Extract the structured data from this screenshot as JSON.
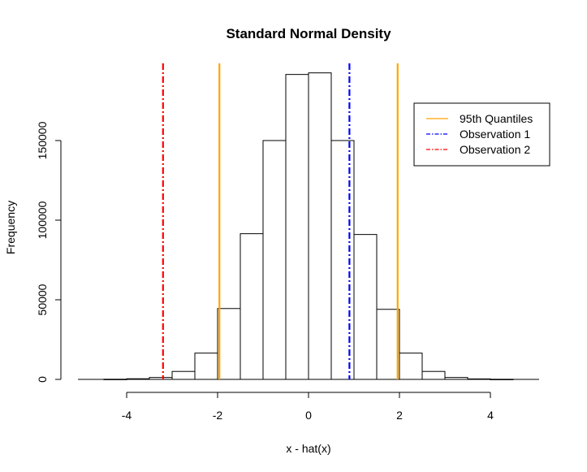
{
  "chart_data": {
    "type": "bar",
    "title": "Standard Normal Density",
    "xlabel": "x - hat(x)",
    "ylabel": "Frequency",
    "xlim": [
      -5,
      5
    ],
    "ylim": [
      0,
      200000
    ],
    "x_ticks": [
      -4,
      -2,
      0,
      2,
      4
    ],
    "y_ticks": [
      0,
      50000,
      100000,
      150000
    ],
    "grid": false,
    "bins": [
      {
        "x0": -4.5,
        "x1": -4.0,
        "count": 100
      },
      {
        "x0": -4.0,
        "x1": -3.5,
        "count": 400
      },
      {
        "x0": -3.5,
        "x1": -3.0,
        "count": 1200
      },
      {
        "x0": -3.0,
        "x1": -2.5,
        "count": 5000
      },
      {
        "x0": -2.5,
        "x1": -2.0,
        "count": 16500
      },
      {
        "x0": -2.0,
        "x1": -1.5,
        "count": 44500
      },
      {
        "x0": -1.5,
        "x1": -1.0,
        "count": 91500
      },
      {
        "x0": -1.0,
        "x1": -0.5,
        "count": 150000
      },
      {
        "x0": -0.5,
        "x1": 0.0,
        "count": 191500
      },
      {
        "x0": 0.0,
        "x1": 0.5,
        "count": 192500
      },
      {
        "x0": 0.5,
        "x1": 1.0,
        "count": 150000
      },
      {
        "x0": 1.0,
        "x1": 1.5,
        "count": 91000
      },
      {
        "x0": 1.5,
        "x1": 2.0,
        "count": 44000
      },
      {
        "x0": 2.0,
        "x1": 2.5,
        "count": 16500
      },
      {
        "x0": 2.5,
        "x1": 3.0,
        "count": 5000
      },
      {
        "x0": 3.0,
        "x1": 3.5,
        "count": 1200
      },
      {
        "x0": 3.5,
        "x1": 4.0,
        "count": 300
      },
      {
        "x0": 4.0,
        "x1": 4.5,
        "count": 80
      }
    ],
    "vlines": [
      {
        "x": -1.96,
        "color": "#FFA500",
        "style": "solid",
        "series": "quantiles"
      },
      {
        "x": 1.96,
        "color": "#FFA500",
        "style": "solid",
        "series": "quantiles"
      },
      {
        "x": 0.9,
        "color": "#0000FF",
        "style": "dashdot",
        "series": "obs1"
      },
      {
        "x": -3.2,
        "color": "#FF0000",
        "style": "dashdot",
        "series": "obs2"
      }
    ],
    "legend": {
      "position": "top-right",
      "entries": [
        {
          "key": "quantiles",
          "label": "95th Quantiles",
          "color": "#FFA500",
          "style": "solid"
        },
        {
          "key": "obs1",
          "label": "Observation 1",
          "color": "#0000FF",
          "style": "dashdot"
        },
        {
          "key": "obs2",
          "label": "Observation 2",
          "color": "#FF0000",
          "style": "dashdot"
        }
      ]
    }
  }
}
